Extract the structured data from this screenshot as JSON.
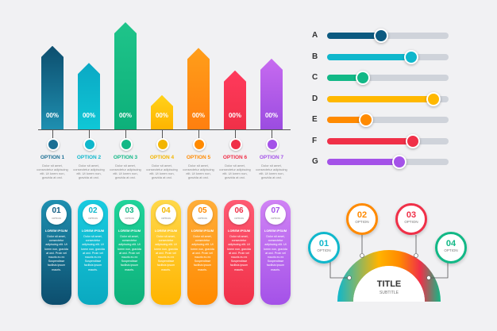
{
  "bar_chart": {
    "bars": [
      {
        "label": "00%",
        "option": "OPTION 1",
        "value": 0.78,
        "color_top": "#0d4e6e",
        "color_bottom": "#1e8fb0",
        "text": "Dolor sit amet, consectetur adipiscing elit. Ut lorem non, gravida at orci."
      },
      {
        "label": "00%",
        "option": "OPTION 2",
        "value": 0.62,
        "color_top": "#0ba8c4",
        "color_bottom": "#0fc7d6",
        "text": "Dolor sit amet, consectetur adipiscing elit. Ut lorem non, gravida at orci."
      },
      {
        "label": "00%",
        "option": "OPTION 3",
        "value": 1.0,
        "color_top": "#1fc48a",
        "color_bottom": "#0db07a",
        "text": "Dolor sit amet, consectetur adipiscing elit. Ut lorem non, gravida at orci."
      },
      {
        "label": "00%",
        "option": "OPTION 4",
        "value": 0.32,
        "color_top": "#ffd21a",
        "color_bottom": "#ffb400",
        "text": "Dolor sit amet, consectetur adipiscing elit. Ut lorem non, gravida at orci."
      },
      {
        "label": "00%",
        "option": "OPTION 5",
        "value": 0.76,
        "color_top": "#ff9e1a",
        "color_bottom": "#ff7f0f",
        "text": "Dolor sit amet, consectetur adipiscing elit. Ut lorem non, gravida at orci."
      },
      {
        "label": "00%",
        "option": "OPTION 6",
        "value": 0.55,
        "color_top": "#ff3a5c",
        "color_bottom": "#f03048",
        "text": "Dolor sit amet, consectetur adipiscing elit. Ut lorem non, gravida at orci."
      },
      {
        "label": "00%",
        "option": "OPTION 7",
        "value": 0.66,
        "color_top": "#c76bf0",
        "color_bottom": "#9b4ce0",
        "text": "Dolor sit amet, consectetur adipiscing elit. Ut lorem non, gravida at orci."
      }
    ],
    "option_colors": [
      "#1b6f94",
      "#0fb7cc",
      "#12b886",
      "#f2b500",
      "#ff8a00",
      "#f03048",
      "#a452e8"
    ]
  },
  "sliders": [
    {
      "letter": "A",
      "value": 0.43,
      "color": "#0d5a80",
      "track": "#cfd3da"
    },
    {
      "letter": "B",
      "value": 0.68,
      "color": "#0fb7cc",
      "track": "#cfd3da"
    },
    {
      "letter": "C",
      "value": 0.28,
      "color": "#12b886",
      "track": "#cfd3da"
    },
    {
      "letter": "D",
      "value": 0.86,
      "color": "#ffb800",
      "track": "#cfd3da"
    },
    {
      "letter": "E",
      "value": 0.31,
      "color": "#ff8a00",
      "track": "#cfd3da"
    },
    {
      "letter": "F",
      "value": 0.69,
      "color": "#f03048",
      "track": "#cfd3da"
    },
    {
      "letter": "G",
      "value": 0.58,
      "color": "#a452e8",
      "track": "#cfd3da"
    }
  ],
  "pills": [
    {
      "number": "01",
      "option": "OPTION",
      "title": "LOREM IPSUM",
      "text": "Dolor sit amet, consectetur adipiscing elit. Ut lorem non, gravida at orci. Proin vel mauris eu ex Suspendisse facilisis ipsum mauris.",
      "color_top": "#1e8fb0",
      "color_bottom": "#0d4e6e",
      "num_color": "#0d5a80"
    },
    {
      "number": "02",
      "option": "OPTION",
      "title": "LOREM IPSUM",
      "text": "Dolor sit amet, consectetur adipiscing elit. Ut lorem non, gravida at orci. Proin vel mauris eu ex Suspendisse facilisis ipsum mauris.",
      "color_top": "#19cbe0",
      "color_bottom": "#0aa9c0",
      "num_color": "#0fb7cc"
    },
    {
      "number": "03",
      "option": "OPTION",
      "title": "LOREM IPSUM",
      "text": "Dolor sit amet, consectetur adipiscing elit. Ut lorem non, gravida at orci. Proin vel mauris eu ex Suspendisse facilisis ipsum mauris.",
      "color_top": "#1fd49a",
      "color_bottom": "#0db07a",
      "num_color": "#12b886"
    },
    {
      "number": "04",
      "option": "OPTION",
      "title": "LOREM IPSUM",
      "text": "Dolor sit amet, consectetur adipiscing elit. Ut lorem non, gravida at orci. Proin vel mauris eu ex Suspendisse facilisis ipsum mauris.",
      "color_top": "#ffd84a",
      "color_bottom": "#ffb400",
      "num_color": "#f2b500"
    },
    {
      "number": "05",
      "option": "OPTION",
      "title": "LOREM IPSUM",
      "text": "Dolor sit amet, consectetur adipiscing elit. Ut lorem non, gravida at orci. Proin vel mauris eu ex Suspendisse facilisis ipsum mauris.",
      "color_top": "#ffae3a",
      "color_bottom": "#ff8a00",
      "num_color": "#ff8a00"
    },
    {
      "number": "06",
      "option": "OPTION",
      "title": "LOREM IPSUM",
      "text": "Dolor sit amet, consectetur adipiscing elit. Ut lorem non, gravida at orci. Proin vel mauris eu ex Suspendisse facilisis ipsum mauris.",
      "color_top": "#ff5a72",
      "color_bottom": "#f03048",
      "num_color": "#f03048"
    },
    {
      "number": "07",
      "option": "OPTION",
      "title": "LOREM IPSUM",
      "text": "Dolor sit amet, consectetur adipiscing elit. Ut lorem non, gravida at orci. Proin vel mauris eu ex Suspendisse facilisis ipsum mauris.",
      "color_top": "#d083f5",
      "color_bottom": "#a452e8",
      "num_color": "#a452e8"
    }
  ],
  "arc": {
    "title": "TITLE",
    "subtitle": "SUBTITLE",
    "items": [
      {
        "number": "01",
        "option": "OPTION",
        "color": "#0fb7cc"
      },
      {
        "number": "02",
        "option": "OPTION",
        "color": "#ff8a00"
      },
      {
        "number": "03",
        "option": "OPTION",
        "color": "#f03048"
      },
      {
        "number": "04",
        "option": "OPTION",
        "color": "#12b886"
      }
    ]
  }
}
